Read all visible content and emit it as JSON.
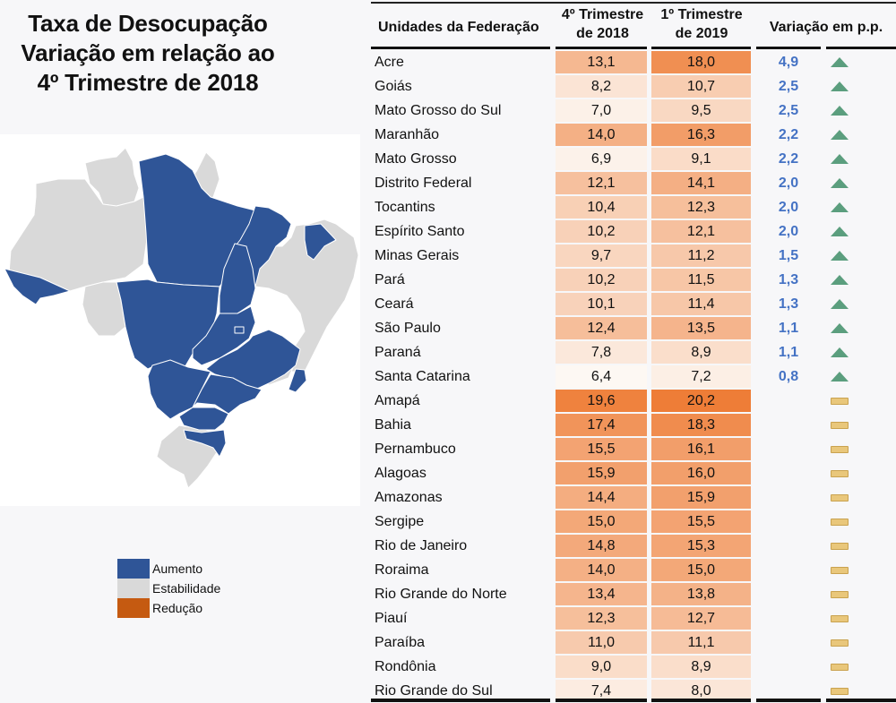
{
  "title": {
    "line1": "Taxa de Desocupação",
    "line2": "Variação em relação ao",
    "line3": "4º Trimestre de 2018"
  },
  "legend": [
    {
      "label": "Aumento",
      "color": "#2f5597"
    },
    {
      "label": "Estabilidade",
      "color": "#d9d9d9"
    },
    {
      "label": "Redução",
      "color": "#c55a11"
    }
  ],
  "colors": {
    "increase": "#2f5597",
    "stable": "#d9d9d9",
    "reduction": "#c55a11",
    "variation_text": "#4472c4",
    "up_icon": "#5b9e7e",
    "stable_icon": "#e9c77b",
    "heat_low": "#fdf8f3",
    "heat_high": "#ee7d37"
  },
  "table": {
    "headers": {
      "name": "Unidades da Federação",
      "col1_line1": "4º Trimestre",
      "col1_line2": "de 2018",
      "col2_line1": "1º Trimestre",
      "col2_line2": "de 2019",
      "variation": "Variação em p.p."
    }
  },
  "chart_data": {
    "type": "table",
    "title": "Taxa de Desocupação - Variação em relação ao 4º Trimestre de 2018",
    "columns": [
      "Unidades da Federação",
      "4º Trimestre de 2018",
      "1º Trimestre de 2019",
      "Variação em p.p."
    ],
    "heat_range": [
      6.4,
      20.2
    ],
    "rows": [
      {
        "uf": "Acre",
        "q4_2018": "13,1",
        "q1_2019": "18,0",
        "var": "4,9",
        "status": "up"
      },
      {
        "uf": "Goiás",
        "q4_2018": "8,2",
        "q1_2019": "10,7",
        "var": "2,5",
        "status": "up"
      },
      {
        "uf": "Mato Grosso do Sul",
        "q4_2018": "7,0",
        "q1_2019": "9,5",
        "var": "2,5",
        "status": "up"
      },
      {
        "uf": "Maranhão",
        "q4_2018": "14,0",
        "q1_2019": "16,3",
        "var": "2,2",
        "status": "up"
      },
      {
        "uf": "Mato Grosso",
        "q4_2018": "6,9",
        "q1_2019": "9,1",
        "var": "2,2",
        "status": "up"
      },
      {
        "uf": "Distrito Federal",
        "q4_2018": "12,1",
        "q1_2019": "14,1",
        "var": "2,0",
        "status": "up"
      },
      {
        "uf": "Tocantins",
        "q4_2018": "10,4",
        "q1_2019": "12,3",
        "var": "2,0",
        "status": "up"
      },
      {
        "uf": "Espírito Santo",
        "q4_2018": "10,2",
        "q1_2019": "12,1",
        "var": "2,0",
        "status": "up"
      },
      {
        "uf": "Minas Gerais",
        "q4_2018": "9,7",
        "q1_2019": "11,2",
        "var": "1,5",
        "status": "up"
      },
      {
        "uf": "Pará",
        "q4_2018": "10,2",
        "q1_2019": "11,5",
        "var": "1,3",
        "status": "up"
      },
      {
        "uf": "Ceará",
        "q4_2018": "10,1",
        "q1_2019": "11,4",
        "var": "1,3",
        "status": "up"
      },
      {
        "uf": "São Paulo",
        "q4_2018": "12,4",
        "q1_2019": "13,5",
        "var": "1,1",
        "status": "up"
      },
      {
        "uf": "Paraná",
        "q4_2018": "7,8",
        "q1_2019": "8,9",
        "var": "1,1",
        "status": "up"
      },
      {
        "uf": "Santa Catarina",
        "q4_2018": "6,4",
        "q1_2019": "7,2",
        "var": "0,8",
        "status": "up"
      },
      {
        "uf": "Amapá",
        "q4_2018": "19,6",
        "q1_2019": "20,2",
        "var": "",
        "status": "stable"
      },
      {
        "uf": "Bahia",
        "q4_2018": "17,4",
        "q1_2019": "18,3",
        "var": "",
        "status": "stable"
      },
      {
        "uf": "Pernambuco",
        "q4_2018": "15,5",
        "q1_2019": "16,1",
        "var": "",
        "status": "stable"
      },
      {
        "uf": "Alagoas",
        "q4_2018": "15,9",
        "q1_2019": "16,0",
        "var": "",
        "status": "stable"
      },
      {
        "uf": "Amazonas",
        "q4_2018": "14,4",
        "q1_2019": "15,9",
        "var": "",
        "status": "stable"
      },
      {
        "uf": "Sergipe",
        "q4_2018": "15,0",
        "q1_2019": "15,5",
        "var": "",
        "status": "stable"
      },
      {
        "uf": "Rio de Janeiro",
        "q4_2018": "14,8",
        "q1_2019": "15,3",
        "var": "",
        "status": "stable"
      },
      {
        "uf": "Roraima",
        "q4_2018": "14,0",
        "q1_2019": "15,0",
        "var": "",
        "status": "stable"
      },
      {
        "uf": "Rio Grande do Norte",
        "q4_2018": "13,4",
        "q1_2019": "13,8",
        "var": "",
        "status": "stable"
      },
      {
        "uf": "Piauí",
        "q4_2018": "12,3",
        "q1_2019": "12,7",
        "var": "",
        "status": "stable"
      },
      {
        "uf": "Paraíba",
        "q4_2018": "11,0",
        "q1_2019": "11,1",
        "var": "",
        "status": "stable"
      },
      {
        "uf": "Rondônia",
        "q4_2018": "9,0",
        "q1_2019": "8,9",
        "var": "",
        "status": "stable"
      },
      {
        "uf": "Rio Grande do Sul",
        "q4_2018": "7,4",
        "q1_2019": "8,0",
        "var": "",
        "status": "stable"
      }
    ],
    "map": {
      "title": "Brasil por UF",
      "increase": [
        "Acre",
        "Goiás",
        "Mato Grosso do Sul",
        "Maranhão",
        "Mato Grosso",
        "Distrito Federal",
        "Tocantins",
        "Espírito Santo",
        "Minas Gerais",
        "Pará",
        "Ceará",
        "São Paulo",
        "Paraná",
        "Santa Catarina"
      ],
      "stable": [
        "Amapá",
        "Bahia",
        "Pernambuco",
        "Alagoas",
        "Amazonas",
        "Sergipe",
        "Rio de Janeiro",
        "Roraima",
        "Rio Grande do Norte",
        "Piauí",
        "Paraíba",
        "Rondônia",
        "Rio Grande do Sul"
      ],
      "reduction": []
    }
  }
}
